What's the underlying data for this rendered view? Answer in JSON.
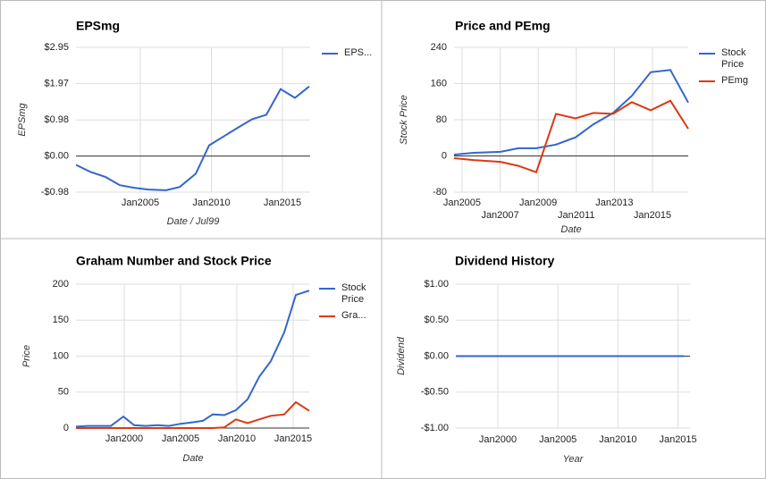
{
  "chart_data": [
    {
      "type": "line",
      "title": "EPSmg",
      "y_label": "EPSmg",
      "x_label": "Date / Jul99",
      "x": [
        2000.47,
        2001.48,
        2002.55,
        2003.55,
        2004.56,
        2005.57,
        2006.82,
        2007.77,
        2008.9,
        2009.84,
        2010.85,
        2011.86,
        2012.86,
        2013.87,
        2014.87,
        2015.88,
        2016.89
      ],
      "series": [
        {
          "name": "EPS...",
          "color": "#3366cc",
          "values": [
            -0.24,
            -0.43,
            -0.57,
            -0.79,
            -0.86,
            -0.91,
            -0.93,
            -0.84,
            -0.48,
            0.29,
            0.53,
            0.77,
            1.0,
            1.12,
            1.82,
            1.58,
            1.89
          ]
        }
      ],
      "xlim": [
        2000.47,
        2016.95
      ],
      "xticks": [
        {
          "value": 2005,
          "label": "Jan2005"
        },
        {
          "value": 2010,
          "label": "Jan2010"
        },
        {
          "value": 2015,
          "label": "Jan2015"
        }
      ],
      "ylim": [
        -0.98,
        2.95
      ],
      "yticks": [
        {
          "value": 2.95,
          "label": "$2.95"
        },
        {
          "value": 1.97,
          "label": "$1.97"
        },
        {
          "value": 0.98,
          "label": "$0.98"
        },
        {
          "value": 0,
          "label": "$0.00"
        },
        {
          "value": -0.98,
          "label": "-$0.98"
        }
      ],
      "grid": true,
      "legend": "right"
    },
    {
      "type": "line",
      "title": "Price and PEmg",
      "y_label": "Stock Price",
      "x_label": "Date",
      "x": [
        2004.58,
        2005.61,
        2007.02,
        2007.96,
        2008.9,
        2009.93,
        2010.96,
        2011.9,
        2012.93,
        2013.92,
        2014.91,
        2015.94,
        2016.88
      ],
      "series": [
        {
          "name": "Stock Price",
          "color": "#3366cc",
          "values": [
            3,
            7,
            9,
            17,
            17,
            25,
            41,
            70,
            95,
            133,
            185,
            190,
            118
          ]
        },
        {
          "name": "PEmg",
          "color": "#dc3912",
          "values": [
            -5,
            -9,
            -13,
            -22,
            -36,
            93,
            83,
            95,
            93,
            119,
            101,
            122,
            60
          ]
        }
      ],
      "xlim": [
        2004.58,
        2016.88
      ],
      "xticks": [
        {
          "value": 2005,
          "label": "Jan2005"
        },
        {
          "value": 2007,
          "label": "Jan2007"
        },
        {
          "value": 2009,
          "label": "Jan2009"
        },
        {
          "value": 2011,
          "label": "Jan2011"
        },
        {
          "value": 2013,
          "label": "Jan2013"
        },
        {
          "value": 2015,
          "label": "Jan2015"
        }
      ],
      "ylim": [
        -80,
        240
      ],
      "yticks": [
        240,
        160,
        80,
        0,
        -80
      ],
      "grid": true,
      "legend": "right"
    },
    {
      "type": "line",
      "title": "Graham Number and Stock Price",
      "y_label": "Price",
      "x_label": "Date",
      "x": [
        1995.71,
        1996.75,
        1997.78,
        1998.81,
        1999.92,
        2000.87,
        2001.9,
        2002.94,
        2003.97,
        2005.0,
        2006.03,
        2006.98,
        2007.86,
        2008.89,
        2009.92,
        2010.95,
        2011.98,
        2013.02,
        2014.21,
        2015.24,
        2016.43
      ],
      "series": [
        {
          "name": "Stock Price",
          "color": "#3366cc",
          "values": [
            2,
            3,
            3,
            3,
            16,
            4,
            3,
            4,
            3,
            6,
            8,
            10,
            19,
            18,
            25,
            40,
            71,
            93,
            133,
            185,
            191
          ]
        },
        {
          "name": "Gra...",
          "color": "#dc3912",
          "values": [
            0,
            0,
            0,
            0,
            0,
            0,
            0,
            0,
            0,
            0,
            0,
            0,
            0,
            1,
            12,
            7,
            12,
            17,
            19,
            36,
            24
          ]
        }
      ],
      "xlim": [
        1995.71,
        2016.43
      ],
      "xticks": [
        {
          "value": 2000,
          "label": "Jan2000"
        },
        {
          "value": 2005,
          "label": "Jan2005"
        },
        {
          "value": 2010,
          "label": "Jan2010"
        },
        {
          "value": 2015,
          "label": "Jan2015"
        }
      ],
      "ylim": [
        0,
        200
      ],
      "yticks": [
        200,
        150,
        100,
        50,
        0
      ],
      "grid": true,
      "legend": "right"
    },
    {
      "type": "line",
      "title": "Dividend History",
      "y_label": "Dividend",
      "x_label": "Year",
      "x": [
        1996.5,
        1997.5,
        1998.5,
        1999.5,
        2000.5,
        2001.5,
        2002.5,
        2003.5,
        2004.5,
        2005.5,
        2006.5,
        2007.5,
        2008.5,
        2009.5,
        2010.5,
        2011.5,
        2012.5,
        2013.5,
        2014.5,
        2015.5
      ],
      "series": [
        {
          "color": "#3366cc",
          "values": [
            0,
            0,
            0,
            0,
            0,
            0,
            0,
            0,
            0,
            0,
            0,
            0,
            0,
            0,
            0,
            0,
            0,
            0,
            0,
            0
          ]
        }
      ],
      "xlim": [
        1996.5,
        2016.0
      ],
      "xticks": [
        {
          "value": 2000,
          "label": "Jan2000"
        },
        {
          "value": 2005,
          "label": "Jan2005"
        },
        {
          "value": 2010,
          "label": "Jan2010"
        },
        {
          "value": 2015,
          "label": "Jan2015"
        }
      ],
      "ylim": [
        -1,
        1
      ],
      "yticks": [
        {
          "value": 1,
          "label": "$1.00"
        },
        {
          "value": 0.5,
          "label": "$0.50"
        },
        {
          "value": 0,
          "label": "$0.00"
        },
        {
          "value": -0.5,
          "label": "-$0.50"
        },
        {
          "value": -1,
          "label": "-$1.00"
        }
      ],
      "grid": true
    }
  ]
}
